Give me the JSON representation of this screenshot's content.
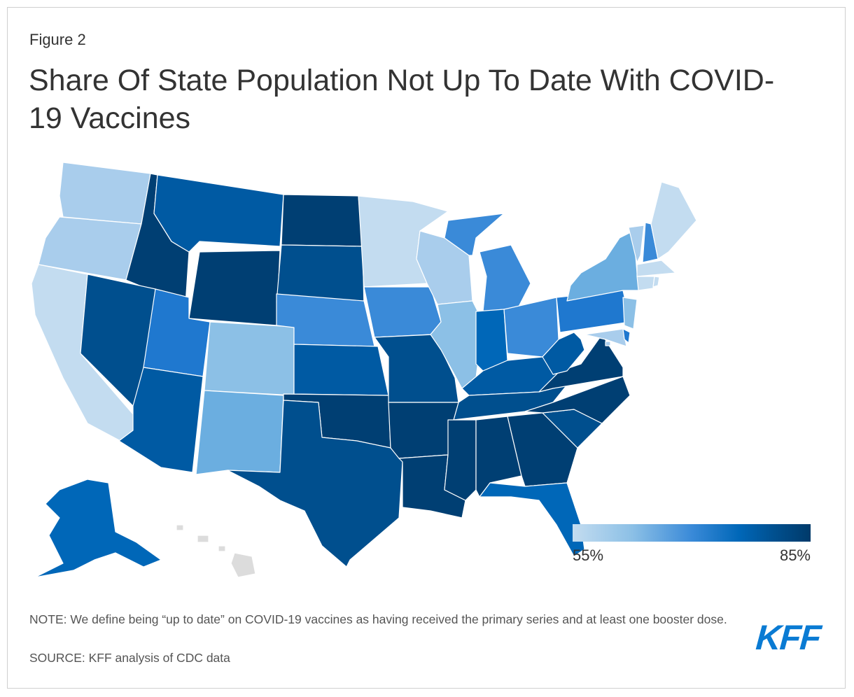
{
  "figure_label": "Figure 2",
  "title": "Share Of State Population Not Up To Date With COVID-19 Vaccines",
  "legend": {
    "min_label": "55%",
    "max_label": "85%"
  },
  "note": "NOTE: We define being “up to date” on COVID-19 vaccines as having received the primary series and at least one booster dose.",
  "source": "SOURCE: KFF analysis of CDC data",
  "logo_text": "KFF",
  "colors": {
    "c1": "#c3dcf0",
    "c2": "#a9cdec",
    "c3": "#8cc0e6",
    "c4": "#6baee0",
    "c5": "#3a8ad8",
    "c6": "#1f78cf",
    "c7": "#0067b8",
    "c8": "#005aa3",
    "c9": "#004f8e",
    "c10": "#003f73",
    "nodata": "#dcdcdc"
  }
}
